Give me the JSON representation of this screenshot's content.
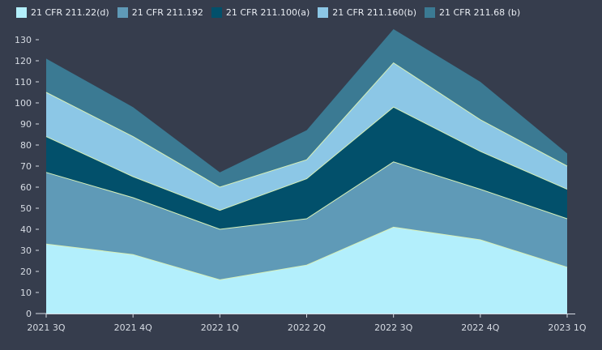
{
  "chart_data": {
    "type": "area",
    "stacked": true,
    "title": "",
    "xlabel": "",
    "ylabel": "",
    "categories": [
      "2021 3Q",
      "2021 4Q",
      "2022 1Q",
      "2022 2Q",
      "2022 3Q",
      "2022 4Q",
      "2023 1Q"
    ],
    "ylim": [
      0,
      130
    ],
    "yticks": [
      0,
      10,
      20,
      30,
      40,
      50,
      60,
      70,
      80,
      90,
      100,
      110,
      120,
      130
    ],
    "grid": false,
    "legend_position": "top-left",
    "series": [
      {
        "name": "21 CFR 211.22(d)",
        "color": "#b3effc",
        "values": [
          33,
          28,
          16,
          23,
          41,
          35,
          22
        ]
      },
      {
        "name": "21 CFR 211.192",
        "color": "#5f9ab7",
        "values": [
          34,
          27,
          24,
          22,
          31,
          24,
          23
        ]
      },
      {
        "name": "21 CFR 211.100(a)",
        "color": "#02506b",
        "values": [
          17,
          10,
          9,
          19,
          26,
          18,
          14
        ]
      },
      {
        "name": "21 CFR 211.160(b)",
        "color": "#8cc7e6",
        "values": [
          21,
          19,
          11,
          9,
          21,
          15,
          11
        ]
      },
      {
        "name": "21 CFR 211.68 (b)",
        "color": "#3b7a93",
        "values": [
          16,
          14,
          7,
          14,
          16,
          18,
          6
        ]
      }
    ]
  }
}
